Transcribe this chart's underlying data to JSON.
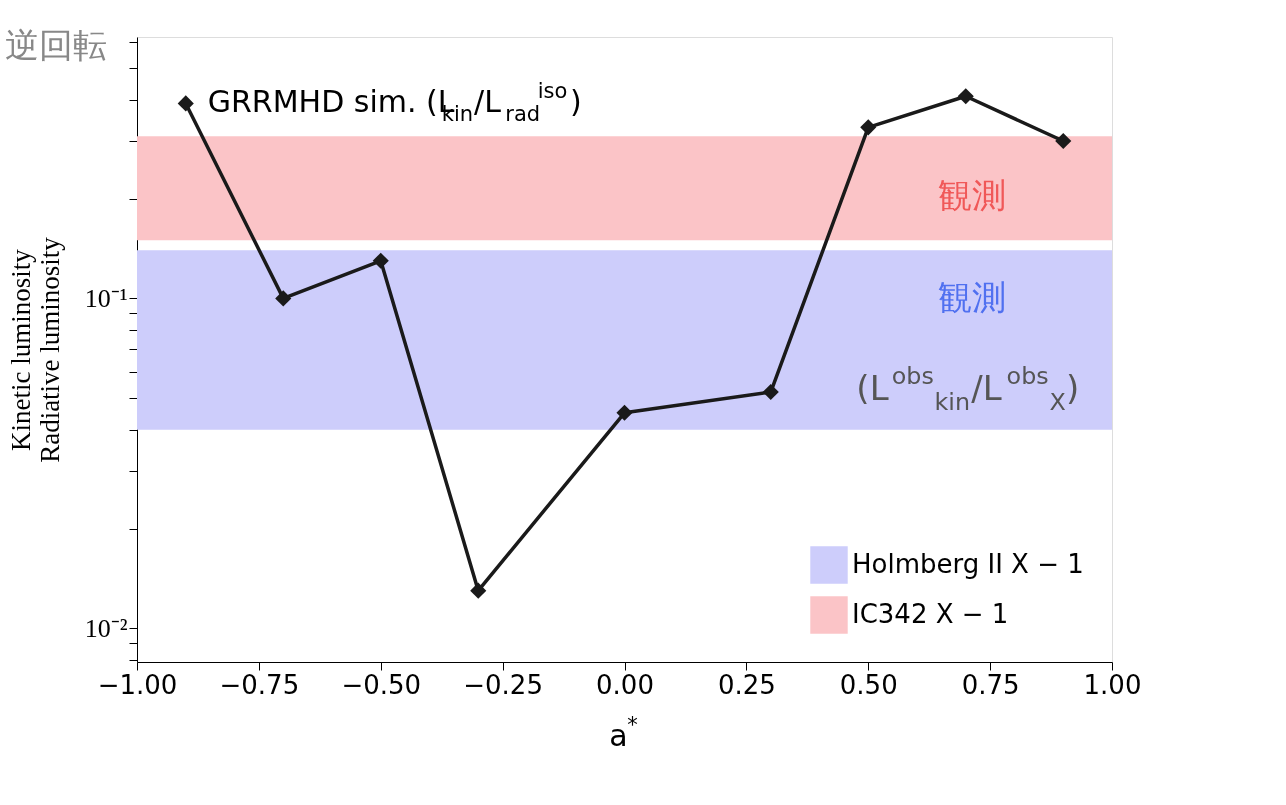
{
  "chart_data": {
    "type": "line",
    "xlabel": "a$^{*}$",
    "ylabel": "Kinetic luminosity\nRadiative luminosity",
    "x": [
      -0.9,
      -0.7,
      -0.5,
      -0.3,
      0,
      0.3,
      0.5,
      0.7,
      0.9
    ],
    "series": [
      {
        "name": "GRRMHD sim. (L$_{kin}$/L$_{rad}$$^{iso}$)",
        "color": "#1a1a1a",
        "values": [
          0.39,
          0.1,
          0.13,
          0.013,
          0.045,
          0.052,
          0.33,
          0.41,
          0.3
        ]
      }
    ],
    "marker": "diamond",
    "line_style": "solid",
    "log": "y",
    "grid": false,
    "legend": "bottom right",
    "xlim": [
      -1,
      1
    ],
    "xticks": [
      {
        "value": -1,
        "label": "−1.00"
      },
      {
        "value": -0.75,
        "label": "−0.75"
      },
      {
        "value": -0.5,
        "label": "−0.50"
      },
      {
        "value": -0.25,
        "label": "−0.25"
      },
      {
        "value": 0,
        "label": "0.00"
      },
      {
        "value": 0.25,
        "label": "0.25"
      },
      {
        "value": 0.5,
        "label": "0.50"
      },
      {
        "value": 0.75,
        "label": "0.75"
      },
      {
        "value": 1,
        "label": "1.00"
      }
    ],
    "ylim": [
      0.0079,
      0.62
    ],
    "yticks": [
      {
        "value": 0.008,
        "label": null
      },
      {
        "value": 0.009,
        "label": null
      },
      {
        "value": 0.01,
        "label": "10⁻²"
      },
      {
        "value": 0.02,
        "label": null
      },
      {
        "value": 0.03,
        "label": null
      },
      {
        "value": 0.04,
        "label": null
      },
      {
        "value": 0.05,
        "label": null
      },
      {
        "value": 0.06,
        "label": null
      },
      {
        "value": 0.07,
        "label": null
      },
      {
        "value": 0.08,
        "label": null
      },
      {
        "value": 0.09,
        "label": null
      },
      {
        "value": 0.1,
        "label": "10⁻¹"
      },
      {
        "value": 0.2,
        "label": null
      },
      {
        "value": 0.3,
        "label": null
      },
      {
        "value": 0.4,
        "label": null
      },
      {
        "value": 0.5,
        "label": null
      },
      {
        "value": 0.6,
        "label": null
      }
    ],
    "bands": [
      {
        "axis": "y",
        "from": 0.04,
        "to": 0.14,
        "label": "Holmberg II X − 1",
        "color": "#cdcdfb"
      },
      {
        "axis": "y",
        "from": 0.15,
        "to": 0.31,
        "label": "IC342 X − 1",
        "color": "#fbc4c7"
      }
    ],
    "annotations": [
      "逆回転",
      "観測",
      "観測",
      "(L$^{obs}$$_{kin}$/L$^{obs}$$_{X}$)"
    ]
  }
}
